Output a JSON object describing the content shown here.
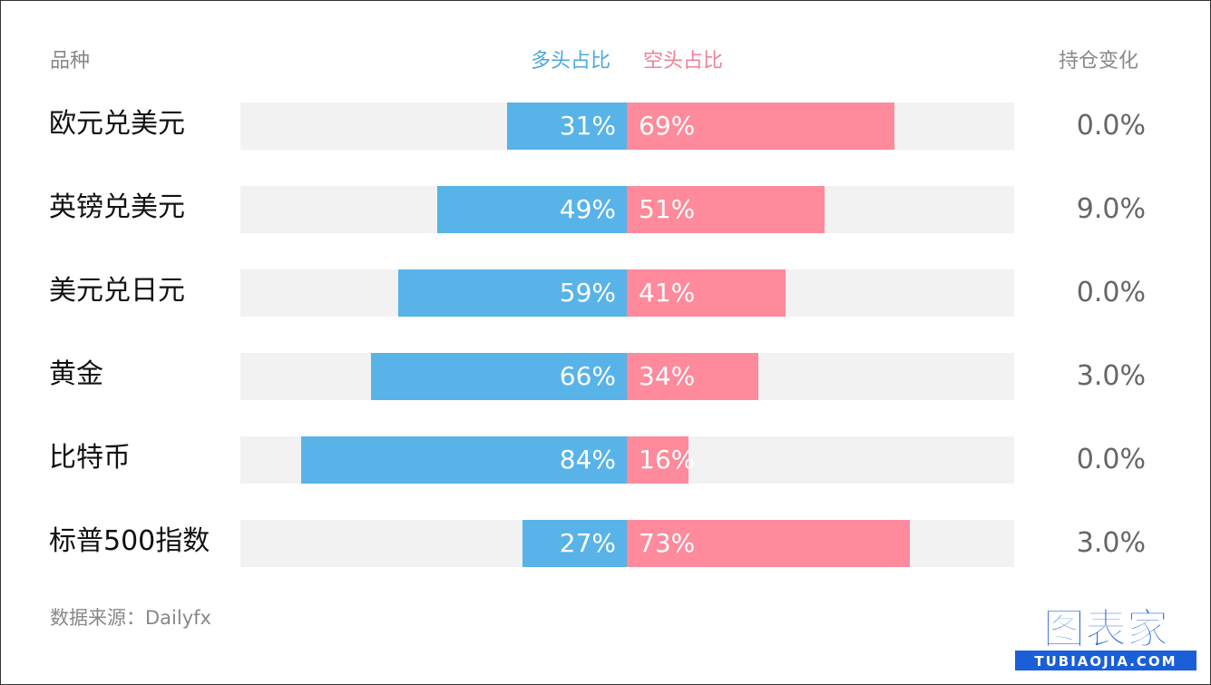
{
  "header": {
    "category": "品种",
    "long": "多头占比",
    "short": "空头占比",
    "change": "持仓变化"
  },
  "colors": {
    "long": "#58b3e8",
    "short": "#fe8a9b",
    "track": "#f2f2f2"
  },
  "chart_data": {
    "type": "bar",
    "categories": [
      "欧元兑美元",
      "英镑兑美元",
      "美元兑日元",
      "黄金",
      "比特币",
      "标普500指数"
    ],
    "series": [
      {
        "name": "多头占比",
        "values": [
          31,
          49,
          59,
          66,
          84,
          27
        ]
      },
      {
        "name": "空头占比",
        "values": [
          69,
          51,
          41,
          34,
          16,
          73
        ]
      }
    ],
    "long_labels": [
      "31%",
      "49%",
      "59%",
      "66%",
      "84%",
      "27%"
    ],
    "short_labels": [
      "69%",
      "51%",
      "41%",
      "34%",
      "16%",
      "73%"
    ],
    "position_change": [
      "0.0%",
      "9.0%",
      "0.0%",
      "3.0%",
      "0.0%",
      "3.0%"
    ],
    "xlim": [
      0,
      100
    ],
    "grid": false,
    "legend": "top-center"
  },
  "footer": {
    "source": "数据来源：Dailyfx",
    "logo_main": "图表家",
    "logo_sub": "TUBIAOJIA.COM"
  }
}
